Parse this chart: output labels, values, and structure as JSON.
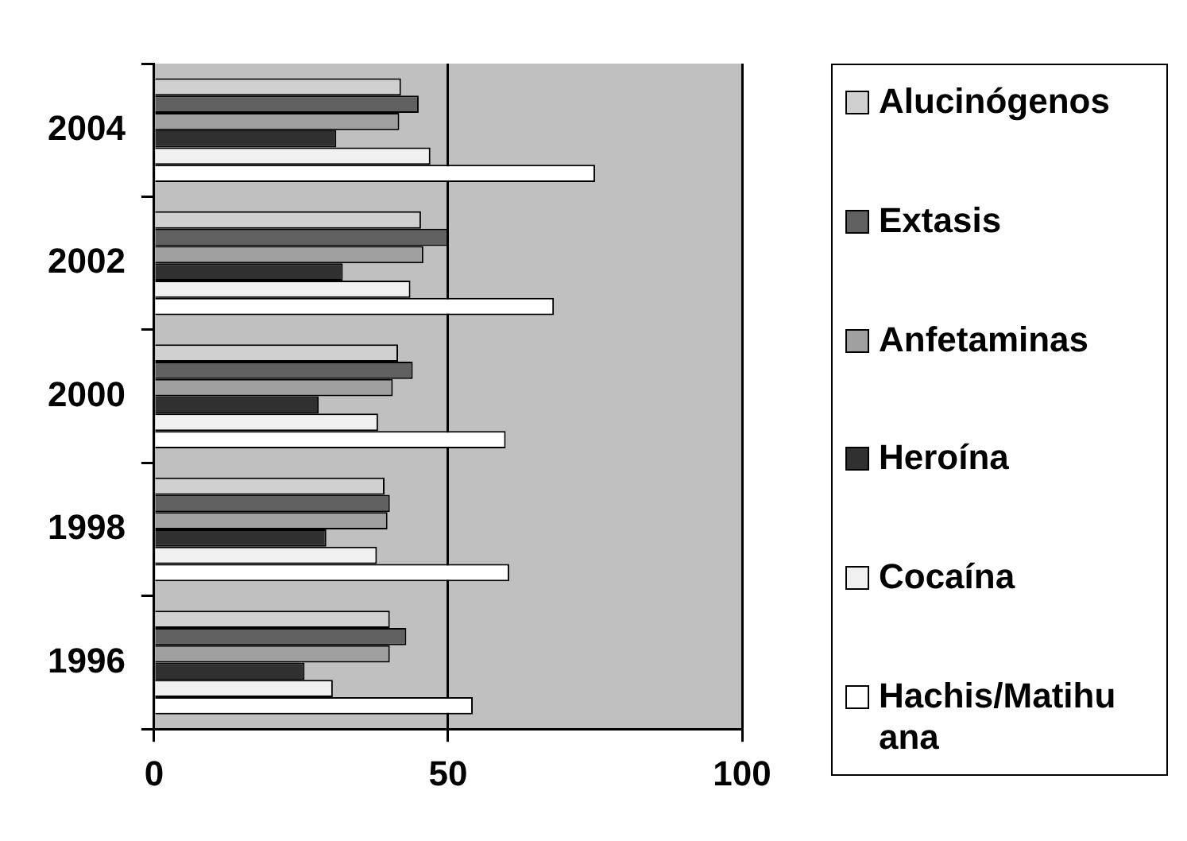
{
  "chart_data": {
    "type": "bar",
    "orientation": "horizontal",
    "categories": [
      "2004",
      "2002",
      "2000",
      "1998",
      "1996"
    ],
    "series": [
      {
        "name": "Alucinógenos",
        "color": "#d0d0d0",
        "values": [
          42,
          45.4,
          41.5,
          39.2,
          40.1
        ]
      },
      {
        "name": "Extasis",
        "color": "#606060",
        "values": [
          45,
          50,
          44,
          40.1,
          42.9
        ]
      },
      {
        "name": "Anfetaminas",
        "color": "#a0a0a0",
        "values": [
          41.7,
          45.8,
          40.6,
          39.7,
          40.1
        ]
      },
      {
        "name": "Heroína",
        "color": "#303030",
        "values": [
          31,
          32.1,
          28,
          29.3,
          25.6
        ]
      },
      {
        "name": "Cocaína",
        "color": "#f0f0f0",
        "values": [
          47,
          43.6,
          38.1,
          37.9,
          30.4
        ]
      },
      {
        "name": "Hachis/Matihuana",
        "color": "#ffffff",
        "values": [
          75,
          68,
          59.8,
          60.4,
          54.2
        ]
      }
    ],
    "xlim": [
      0,
      100
    ],
    "xticks": [
      0,
      50,
      100
    ],
    "grid": "x",
    "legend": "right"
  }
}
